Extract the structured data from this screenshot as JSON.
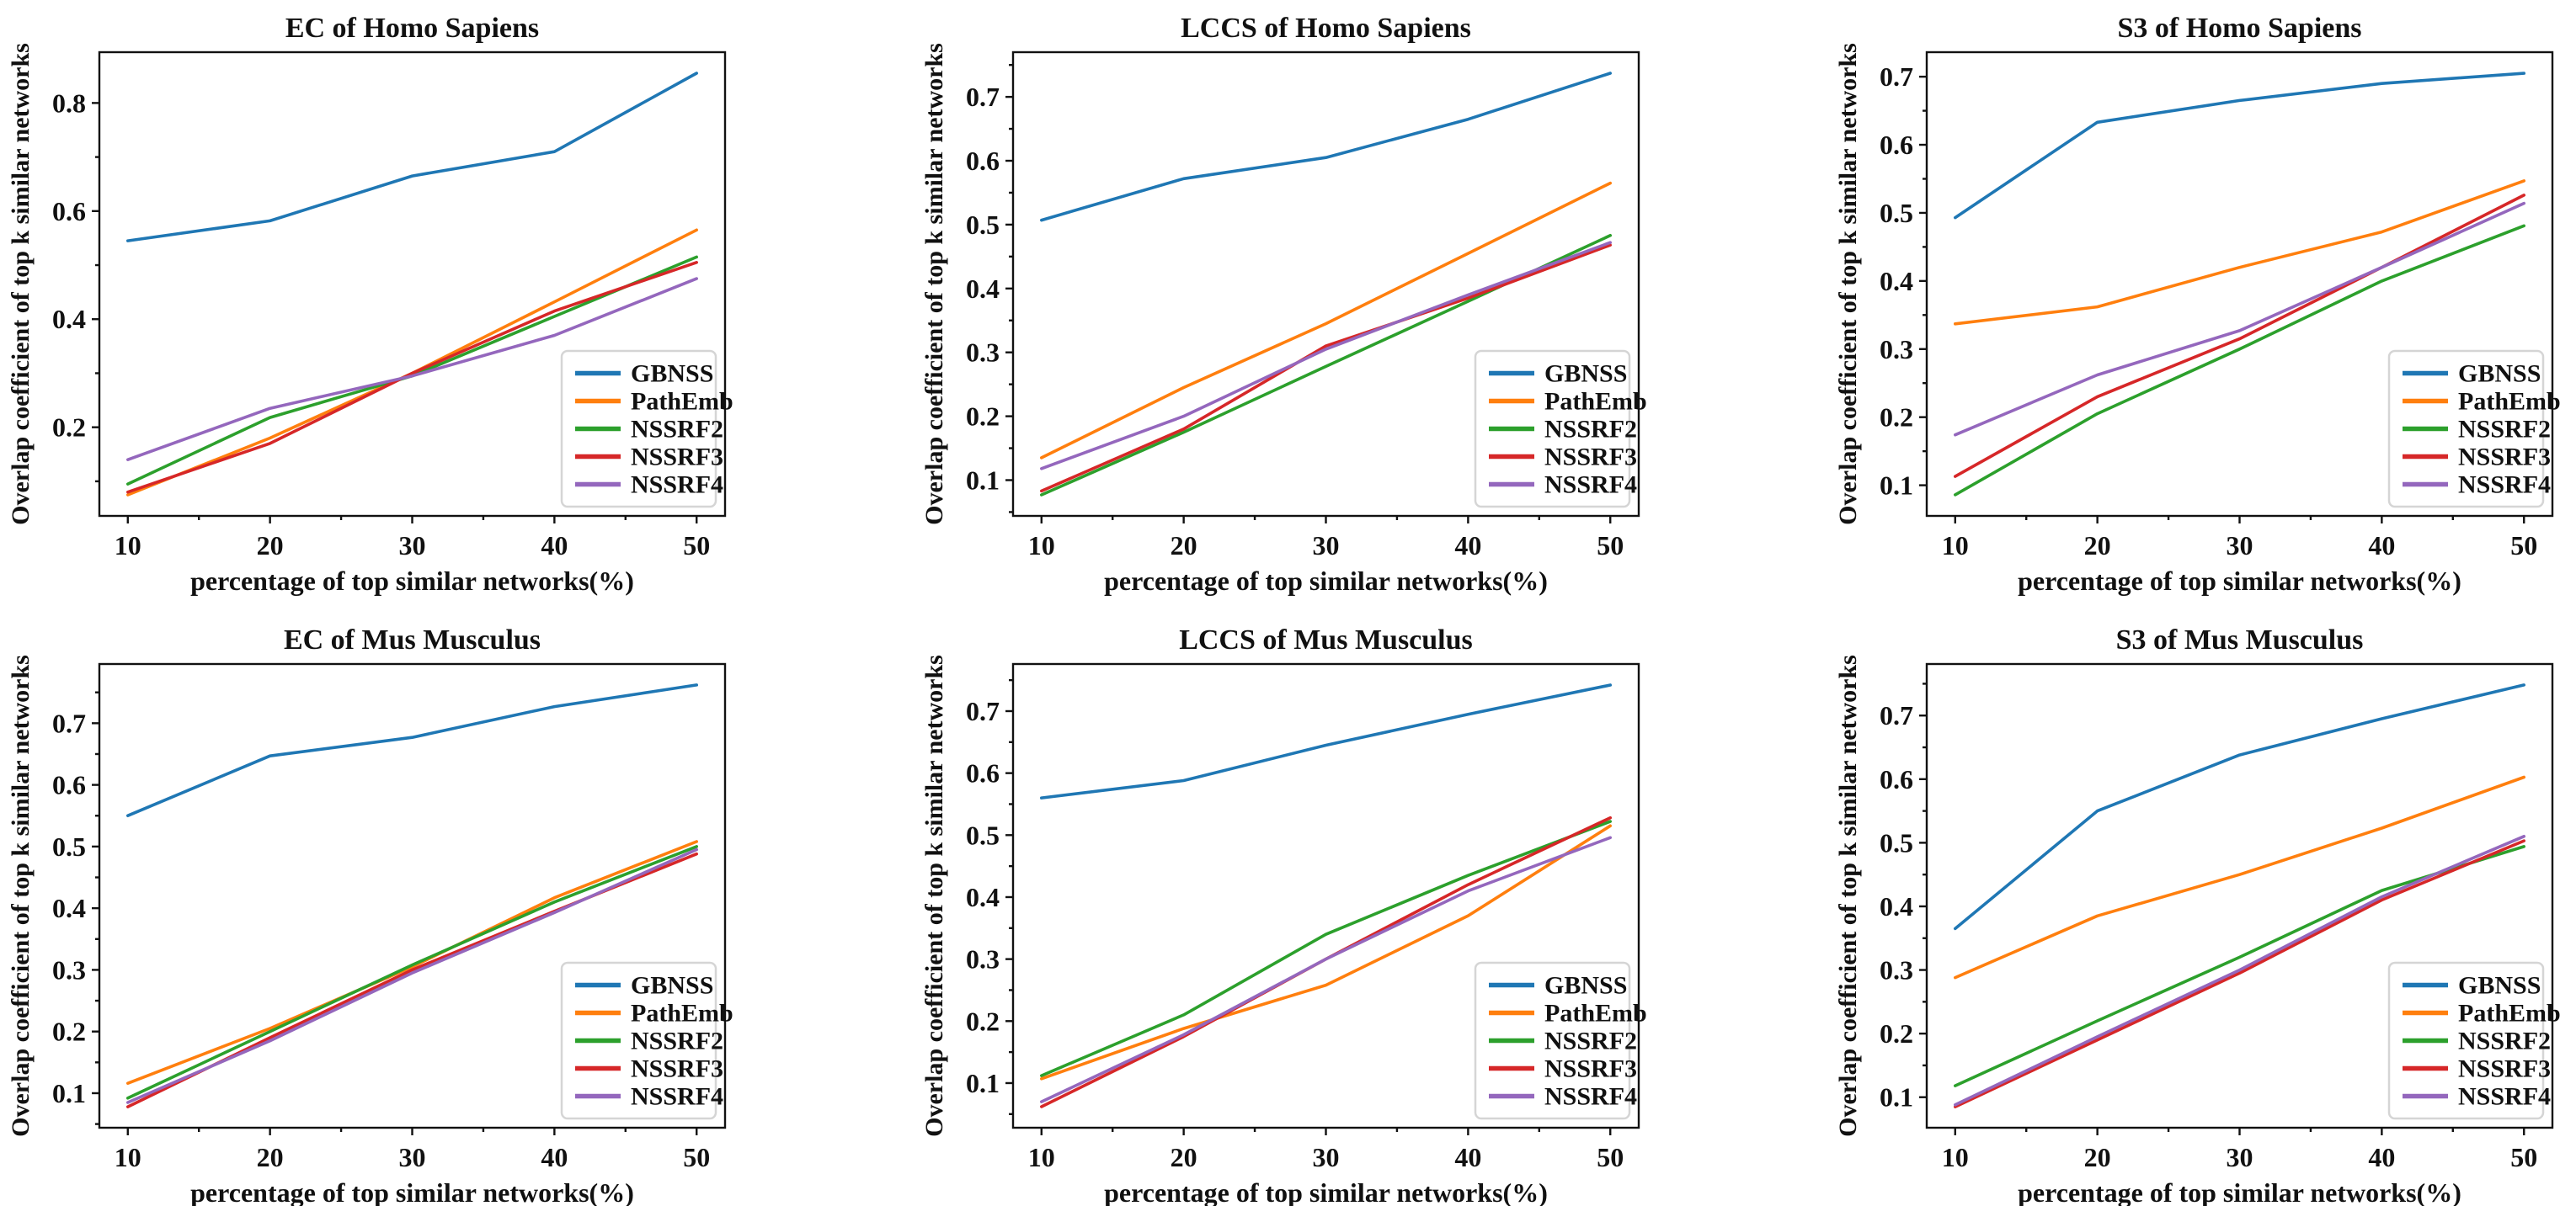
{
  "figure": {
    "background": "#ffffff",
    "text_color": "#111111",
    "xlabel": "percentage of top similar networks(%)",
    "ylabel": "Overlap coefficient of top k similar networks",
    "legend": {
      "position": "lower right",
      "entries": [
        {
          "label": "GBNSS",
          "color": "#1f77b4"
        },
        {
          "label": "PathEmb",
          "color": "#ff7f0e"
        },
        {
          "label": "NSSRF2",
          "color": "#2ca02c"
        },
        {
          "label": "NSSRF3",
          "color": "#d62728"
        },
        {
          "label": "NSSRF4",
          "color": "#9467bd"
        }
      ]
    }
  },
  "chart_data": [
    {
      "type": "line",
      "title": "EC of Homo Sapiens",
      "xlabel": "percentage of top similar networks(%)",
      "ylabel": "Overlap coefficient of top k similar networks",
      "x": [
        10,
        20,
        30,
        40,
        50
      ],
      "xlim": [
        8,
        52
      ],
      "ylim": [
        0.036,
        0.894
      ],
      "xticks": [
        10,
        20,
        30,
        40,
        50
      ],
      "yticks": [
        0.2,
        0.4,
        0.6,
        0.8
      ],
      "grid": false,
      "legend_position": "lower right",
      "series": [
        {
          "name": "GBNSS",
          "color": "#1f77b4",
          "values": [
            0.545,
            0.582,
            0.665,
            0.71,
            0.855
          ]
        },
        {
          "name": "PathEmb",
          "color": "#ff7f0e",
          "values": [
            0.075,
            0.18,
            0.3,
            0.432,
            0.565
          ]
        },
        {
          "name": "NSSRF2",
          "color": "#2ca02c",
          "values": [
            0.095,
            0.218,
            0.295,
            0.405,
            0.515
          ]
        },
        {
          "name": "NSSRF3",
          "color": "#d62728",
          "values": [
            0.08,
            0.17,
            0.3,
            0.415,
            0.505
          ]
        },
        {
          "name": "NSSRF4",
          "color": "#9467bd",
          "values": [
            0.14,
            0.235,
            0.295,
            0.37,
            0.475
          ]
        }
      ]
    },
    {
      "type": "line",
      "title": "LCCS of Homo Sapiens",
      "xlabel": "percentage of top similar networks(%)",
      "ylabel": "Overlap coefficient of top k similar networks",
      "x": [
        10,
        20,
        30,
        40,
        50
      ],
      "xlim": [
        8,
        52
      ],
      "ylim": [
        0.044,
        0.77
      ],
      "xticks": [
        10,
        20,
        30,
        40,
        50
      ],
      "yticks": [
        0.1,
        0.2,
        0.3,
        0.4,
        0.5,
        0.6,
        0.7
      ],
      "grid": false,
      "legend_position": "lower right",
      "series": [
        {
          "name": "GBNSS",
          "color": "#1f77b4",
          "values": [
            0.507,
            0.572,
            0.605,
            0.665,
            0.737
          ]
        },
        {
          "name": "PathEmb",
          "color": "#ff7f0e",
          "values": [
            0.135,
            0.245,
            0.345,
            0.455,
            0.565
          ]
        },
        {
          "name": "NSSRF2",
          "color": "#2ca02c",
          "values": [
            0.077,
            0.175,
            0.278,
            0.38,
            0.483
          ]
        },
        {
          "name": "NSSRF3",
          "color": "#d62728",
          "values": [
            0.083,
            0.18,
            0.31,
            0.385,
            0.468
          ]
        },
        {
          "name": "NSSRF4",
          "color": "#9467bd",
          "values": [
            0.118,
            0.2,
            0.305,
            0.39,
            0.472
          ]
        }
      ]
    },
    {
      "type": "line",
      "title": "S3 of Homo Sapiens",
      "xlabel": "percentage of top similar networks(%)",
      "ylabel": "Overlap coefficient of top k similar networks",
      "x": [
        10,
        20,
        30,
        40,
        50
      ],
      "xlim": [
        8,
        52
      ],
      "ylim": [
        0.055,
        0.736
      ],
      "xticks": [
        10,
        20,
        30,
        40,
        50
      ],
      "yticks": [
        0.1,
        0.2,
        0.3,
        0.4,
        0.5,
        0.6,
        0.7
      ],
      "grid": false,
      "legend_position": "lower right",
      "series": [
        {
          "name": "GBNSS",
          "color": "#1f77b4",
          "values": [
            0.493,
            0.633,
            0.665,
            0.69,
            0.705
          ]
        },
        {
          "name": "PathEmb",
          "color": "#ff7f0e",
          "values": [
            0.337,
            0.362,
            0.42,
            0.472,
            0.547
          ]
        },
        {
          "name": "NSSRF2",
          "color": "#2ca02c",
          "values": [
            0.086,
            0.205,
            0.3,
            0.4,
            0.481
          ]
        },
        {
          "name": "NSSRF3",
          "color": "#d62728",
          "values": [
            0.113,
            0.23,
            0.315,
            0.42,
            0.526
          ]
        },
        {
          "name": "NSSRF4",
          "color": "#9467bd",
          "values": [
            0.174,
            0.262,
            0.327,
            0.42,
            0.514
          ]
        }
      ]
    },
    {
      "type": "line",
      "title": "EC of Mus Musculus",
      "xlabel": "percentage of top similar networks(%)",
      "ylabel": "Overlap coefficient of top k similar networks",
      "x": [
        10,
        20,
        30,
        40,
        50
      ],
      "xlim": [
        8,
        52
      ],
      "ylim": [
        0.044,
        0.796
      ],
      "xticks": [
        10,
        20,
        30,
        40,
        50
      ],
      "yticks": [
        0.1,
        0.2,
        0.3,
        0.4,
        0.5,
        0.6,
        0.7
      ],
      "grid": false,
      "legend_position": "lower right",
      "series": [
        {
          "name": "GBNSS",
          "color": "#1f77b4",
          "values": [
            0.55,
            0.647,
            0.677,
            0.727,
            0.762
          ]
        },
        {
          "name": "PathEmb",
          "color": "#ff7f0e",
          "values": [
            0.116,
            0.205,
            0.305,
            0.417,
            0.508
          ]
        },
        {
          "name": "NSSRF2",
          "color": "#2ca02c",
          "values": [
            0.092,
            0.2,
            0.308,
            0.41,
            0.5
          ]
        },
        {
          "name": "NSSRF3",
          "color": "#d62728",
          "values": [
            0.078,
            0.19,
            0.3,
            0.395,
            0.488
          ]
        },
        {
          "name": "NSSRF4",
          "color": "#9467bd",
          "values": [
            0.085,
            0.185,
            0.295,
            0.393,
            0.495
          ]
        }
      ]
    },
    {
      "type": "line",
      "title": "LCCS of Mus Musculus",
      "xlabel": "percentage of top similar networks(%)",
      "ylabel": "Overlap coefficient of top k similar networks",
      "x": [
        10,
        20,
        30,
        40,
        50
      ],
      "xlim": [
        8,
        52
      ],
      "ylim": [
        0.028,
        0.776
      ],
      "xticks": [
        10,
        20,
        30,
        40,
        50
      ],
      "yticks": [
        0.1,
        0.2,
        0.3,
        0.4,
        0.5,
        0.6,
        0.7
      ],
      "grid": false,
      "legend_position": "lower right",
      "series": [
        {
          "name": "GBNSS",
          "color": "#1f77b4",
          "values": [
            0.56,
            0.588,
            0.645,
            0.695,
            0.742
          ]
        },
        {
          "name": "PathEmb",
          "color": "#ff7f0e",
          "values": [
            0.107,
            0.188,
            0.258,
            0.37,
            0.515
          ]
        },
        {
          "name": "NSSRF2",
          "color": "#2ca02c",
          "values": [
            0.112,
            0.21,
            0.34,
            0.435,
            0.522
          ]
        },
        {
          "name": "NSSRF3",
          "color": "#d62728",
          "values": [
            0.062,
            0.175,
            0.3,
            0.42,
            0.528
          ]
        },
        {
          "name": "NSSRF4",
          "color": "#9467bd",
          "values": [
            0.07,
            0.178,
            0.3,
            0.41,
            0.496
          ]
        }
      ]
    },
    {
      "type": "line",
      "title": "S3 of Mus Musculus",
      "xlabel": "percentage of top similar networks(%)",
      "ylabel": "Overlap coefficient of top k similar networks",
      "x": [
        10,
        20,
        30,
        40,
        50
      ],
      "xlim": [
        8,
        52
      ],
      "ylim": [
        0.052,
        0.781
      ],
      "xticks": [
        10,
        20,
        30,
        40,
        50
      ],
      "yticks": [
        0.1,
        0.2,
        0.3,
        0.4,
        0.5,
        0.6,
        0.7
      ],
      "grid": false,
      "legend_position": "lower right",
      "series": [
        {
          "name": "GBNSS",
          "color": "#1f77b4",
          "values": [
            0.365,
            0.55,
            0.638,
            0.695,
            0.748
          ]
        },
        {
          "name": "PathEmb",
          "color": "#ff7f0e",
          "values": [
            0.288,
            0.385,
            0.45,
            0.523,
            0.603
          ]
        },
        {
          "name": "NSSRF2",
          "color": "#2ca02c",
          "values": [
            0.118,
            0.22,
            0.32,
            0.425,
            0.494
          ]
        },
        {
          "name": "NSSRF3",
          "color": "#d62728",
          "values": [
            0.085,
            0.19,
            0.295,
            0.41,
            0.503
          ]
        },
        {
          "name": "NSSRF4",
          "color": "#9467bd",
          "values": [
            0.088,
            0.195,
            0.3,
            0.415,
            0.51
          ]
        }
      ]
    }
  ]
}
